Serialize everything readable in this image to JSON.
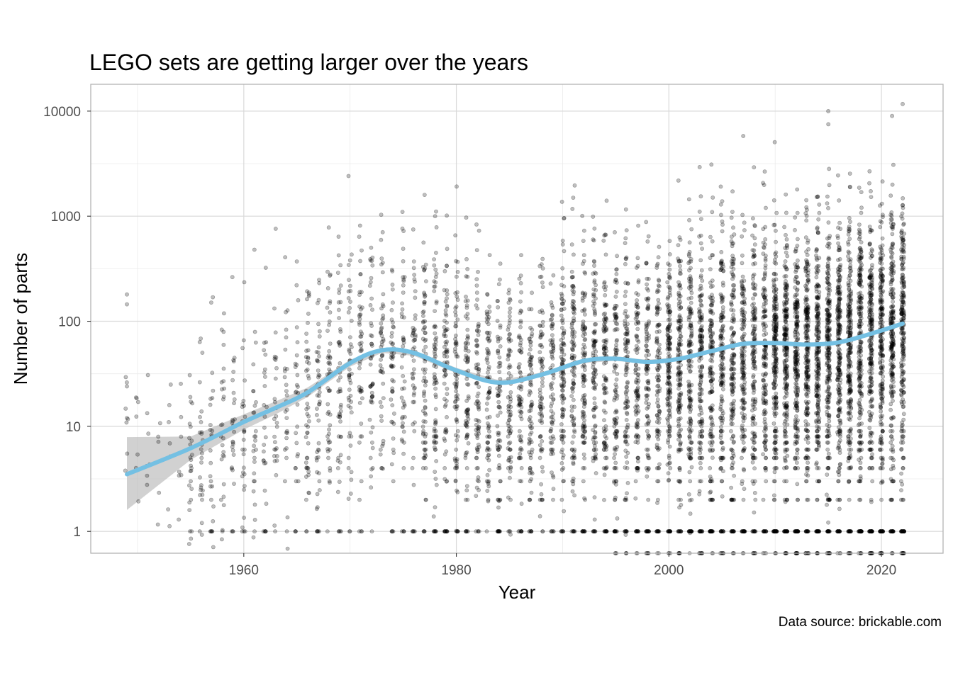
{
  "chart_data": {
    "type": "scatter",
    "title": "LEGO sets are getting larger over the years",
    "xlabel": "Year",
    "ylabel": "Number of parts",
    "caption": "Data source: brickable.com",
    "x_scale": "linear",
    "y_scale": "log10",
    "xlim": [
      1945.6,
      2025.8
    ],
    "ylim": [
      0.62,
      18000
    ],
    "x_ticks": [
      {
        "value": 1960,
        "label": "1960"
      },
      {
        "value": 1980,
        "label": "1980"
      },
      {
        "value": 2000,
        "label": "2000"
      },
      {
        "value": 2020,
        "label": "2020"
      }
    ],
    "y_ticks": [
      {
        "value": 1,
        "label": "1"
      },
      {
        "value": 10,
        "label": "10"
      },
      {
        "value": 100,
        "label": "100"
      },
      {
        "value": 1000,
        "label": "1000"
      },
      {
        "value": 10000,
        "label": "10000"
      }
    ],
    "grid": true,
    "legend": "none",
    "colors": {
      "points": "#000000",
      "trend_line": "#74C0E3",
      "confidence_band": "#BEBEBE",
      "grid_major": "#D9D9D9",
      "grid_minor": "#EBEBEB",
      "panel_border": "#B3B3B3"
    },
    "year_range": [
      1949,
      2022
    ],
    "smooth_trend": {
      "x": [
        1949,
        1955,
        1960,
        1963,
        1966,
        1970,
        1973,
        1976,
        1980,
        1984,
        1988,
        1992,
        1995,
        1998,
        2001,
        2004,
        2007,
        2010,
        2013,
        2016,
        2019,
        2022
      ],
      "y": [
        3.5,
        6.2,
        11,
        15,
        21,
        40,
        53,
        50,
        34,
        26,
        31,
        42,
        44,
        41,
        44,
        52,
        61,
        62,
        60,
        63,
        76,
        95
      ],
      "lower": [
        1.6,
        4.8,
        9.3,
        13,
        19,
        37,
        50,
        47,
        32,
        24.5,
        29.5,
        40,
        42,
        39,
        42.5,
        50.5,
        59.5,
        60.5,
        58.5,
        61.5,
        73.5,
        90
      ],
      "upper": [
        7.9,
        8.0,
        13,
        17.3,
        23.4,
        43,
        56,
        53,
        36,
        27.5,
        32.5,
        44,
        46,
        43,
        45.5,
        53.5,
        62.5,
        63.5,
        61.5,
        64.5,
        78.5,
        100
      ]
    },
    "notable_points": {
      "x": [
        1949,
        1949,
        1949,
        1949,
        1961,
        1963,
        1968,
        1978,
        1991,
        2004,
        2007,
        2015,
        2021,
        2022
      ],
      "y": [
        180,
        145,
        24,
        12,
        480,
        760,
        780,
        1000,
        1500,
        3100,
        5800,
        10000,
        9000,
        11700
      ]
    },
    "points_note": "Thousands of individual LEGO sets (one semi-transparent dot per set); density increases strongly after 1990."
  }
}
